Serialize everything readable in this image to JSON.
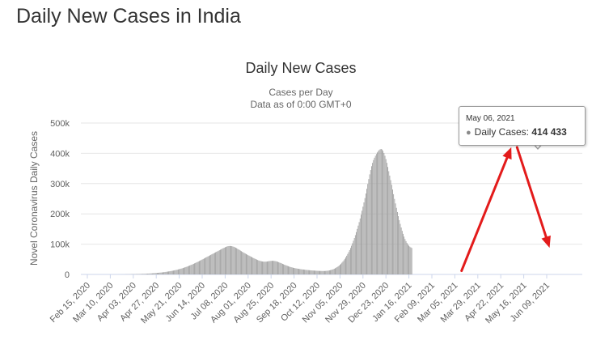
{
  "page": {
    "title": "Daily New Cases in India"
  },
  "chart_data": {
    "type": "bar",
    "title": "Daily New Cases",
    "subtitle_line1": "Cases per Day",
    "subtitle_line2": "Data as of 0:00 GMT+0",
    "ylabel": "Novel Coronavirus Daily Cases",
    "xlabel": "",
    "ylim": [
      0,
      500000
    ],
    "yticks": [
      0,
      100000,
      200000,
      300000,
      400000,
      500000
    ],
    "ytick_labels": [
      "0",
      "100k",
      "200k",
      "300k",
      "400k",
      "500k"
    ],
    "xtick_labels": [
      "Feb 15, 2020",
      "Mar 10, 2020",
      "Apr 03, 2020",
      "Apr 27, 2020",
      "May 21, 2020",
      "Jun 14, 2020",
      "Jul 08, 2020",
      "Aug 01, 2020",
      "Aug 25, 2020",
      "Sep 18, 2020",
      "Oct 12, 2020",
      "Nov 05, 2020",
      "Nov 29, 2020",
      "Dec 23, 2020",
      "Jan 16, 2021",
      "Feb 09, 2021",
      "Mar 05, 2021",
      "Mar 29, 2021",
      "Apr 22, 2021",
      "May 16, 2021",
      "Jun 09, 2021"
    ],
    "start_date": "2020-02-15",
    "days_per_tick": 24,
    "series": [
      {
        "values": [
          0,
          0,
          0,
          0,
          0,
          0,
          0,
          0,
          0,
          0,
          0,
          0,
          0,
          0,
          0,
          0,
          0,
          0,
          0,
          0,
          0,
          0,
          0,
          0,
          10,
          10,
          20,
          20,
          20,
          30,
          30,
          50,
          70,
          100,
          120,
          150,
          180,
          210,
          250,
          300,
          350,
          400,
          450,
          500,
          550,
          600,
          700,
          800,
          900,
          1000,
          1000,
          1100,
          1200,
          1300,
          1400,
          1500,
          1600,
          1700,
          1800,
          2000,
          2100,
          2200,
          2400,
          2600,
          2800,
          3000,
          3200,
          3400,
          3600,
          3900,
          4200,
          4500,
          4800,
          5100,
          5400,
          5700,
          6000,
          6300,
          6600,
          7000,
          7400,
          7900,
          8400,
          8900,
          9400,
          9900,
          10400,
          11000,
          11600,
          12200,
          12800,
          13500,
          14200,
          14900,
          15700,
          16500,
          17400,
          18300,
          19200,
          20200,
          21200,
          22300,
          23400,
          24500,
          25700,
          26900,
          28200,
          29500,
          30800,
          32200,
          33600,
          35000,
          36500,
          38000,
          39500,
          41100,
          42700,
          44300,
          45900,
          47600,
          49300,
          51000,
          52700,
          54400,
          56100,
          57800,
          59500,
          61200,
          62900,
          64600,
          66300,
          68000,
          69700,
          71400,
          73100,
          74800,
          76500,
          78200,
          79900,
          81600,
          83300,
          85000,
          86700,
          88300,
          89800,
          91200,
          92400,
          93300,
          93800,
          94000,
          93800,
          93300,
          92500,
          91400,
          90000,
          88400,
          86600,
          84700,
          82700,
          80700,
          78700,
          76700,
          74700,
          72800,
          70900,
          69100,
          67300,
          65500,
          63800,
          62100,
          60400,
          58700,
          57000,
          55300,
          53700,
          52100,
          50600,
          49100,
          47700,
          46400,
          45200,
          44200,
          43400,
          42800,
          42400,
          42200,
          42200,
          42400,
          42800,
          43300,
          43900,
          44400,
          44800,
          45000,
          45000,
          44800,
          44300,
          43600,
          42700,
          41600,
          40400,
          39100,
          37800,
          36400,
          35000,
          33600,
          32200,
          30900,
          29600,
          28300,
          27100,
          26000,
          24900,
          23900,
          23000,
          22200,
          21400,
          20700,
          20100,
          19500,
          18900,
          18400,
          17900,
          17400,
          16900,
          16500,
          16100,
          15700,
          15300,
          14900,
          14600,
          14300,
          14000,
          13700,
          13400,
          13100,
          12900,
          12700,
          12500,
          12300,
          12100,
          11900,
          11700,
          11600,
          11500,
          11400,
          11300,
          11300,
          11400,
          11600,
          11900,
          12300,
          12800,
          13400,
          14200,
          15100,
          16200,
          17400,
          18800,
          20400,
          22200,
          24200,
          26500,
          29100,
          32000,
          35200,
          38700,
          42500,
          46700,
          51300,
          56300,
          61700,
          67500,
          73700,
          80300,
          87300,
          94800,
          102800,
          111300,
          120300,
          129800,
          139800,
          150300,
          161300,
          172800,
          184800,
          197300,
          210300,
          223800,
          237800,
          252300,
          267300,
          282800,
          298800,
          315000,
          330500,
          344800,
          357500,
          368500,
          377800,
          385500,
          392000,
          397800,
          403000,
          407500,
          411000,
          413500,
          414433,
          412500,
          408000,
          401000,
          392000,
          381000,
          368500,
          355000,
          341000,
          326500,
          311500,
          296000,
          280500,
          265000,
          249500,
          234500,
          220000,
          206000,
          192500,
          179500,
          167000,
          155000,
          144000,
          134000,
          125000,
          117000,
          110000,
          104000,
          99000,
          95000,
          92000,
          89500,
          87500
        ]
      }
    ],
    "tooltip": {
      "date": "May 06, 2021",
      "label": "Daily Cases:",
      "value": "414 433"
    },
    "annotations": [
      {
        "type": "arrow",
        "color": "#e31b1b",
        "from": "2021-03-12",
        "to": "2021-05-03",
        "direction": "rising"
      },
      {
        "type": "arrow",
        "color": "#e31b1b",
        "from": "2021-05-09",
        "to": "2021-06-12",
        "direction": "falling"
      }
    ],
    "colors": {
      "bar": "#9a9a9a",
      "grid": "#e6e6e6",
      "axis_text": "#606060",
      "title": "#333333",
      "arrow": "#e31b1b"
    },
    "grid": true,
    "legend": "none"
  }
}
